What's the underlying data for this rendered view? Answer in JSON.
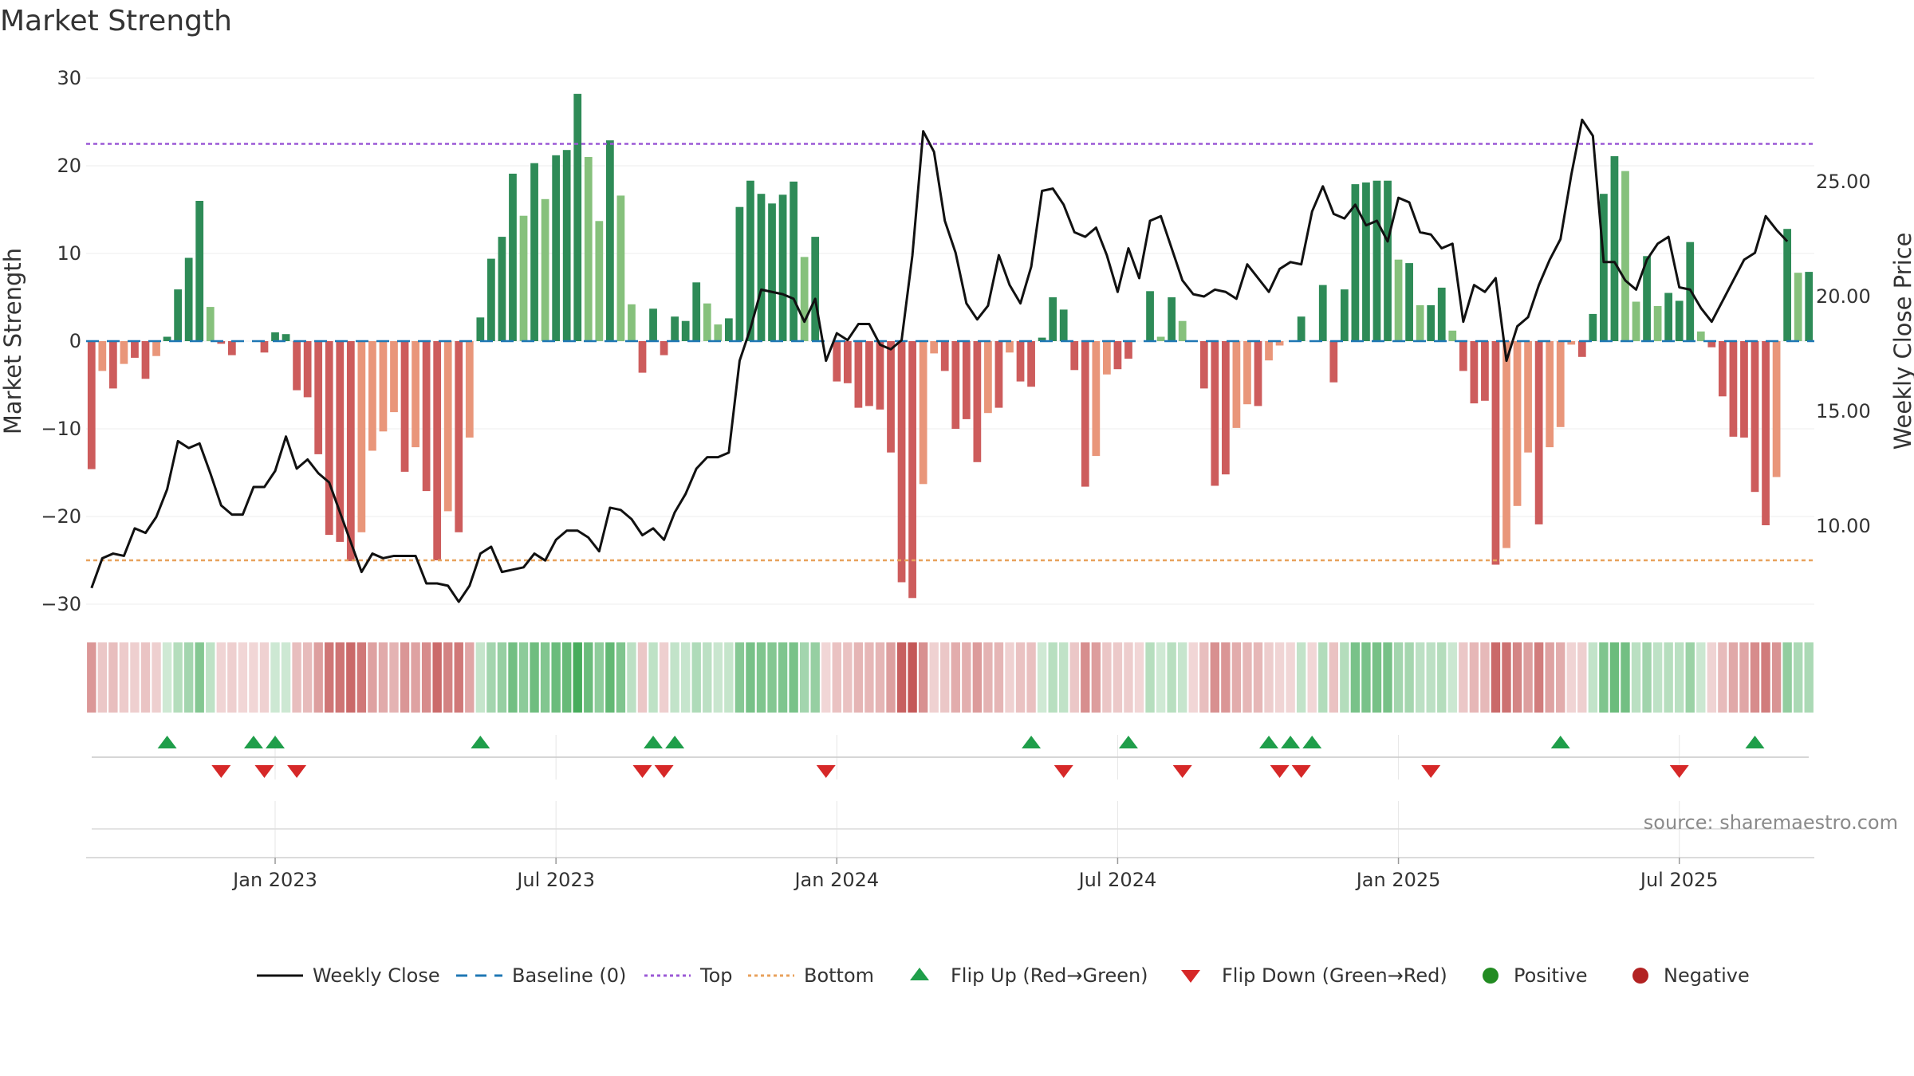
{
  "chart_data": {
    "type": "bar",
    "title": "Market Strength",
    "source": "source: sharemaestro.com",
    "left_axis": {
      "label": "Market Strength",
      "range": [
        -33,
        32
      ],
      "ticks": [
        30,
        20,
        10,
        0,
        -10,
        -20,
        -30
      ],
      "tick_labels": [
        "30",
        "20",
        "10",
        "0",
        "−10",
        "−20",
        "−30"
      ]
    },
    "right_axis": {
      "label": "Weekly Close Price",
      "range": [
        6.0,
        30.1
      ],
      "ticks": [
        25,
        20,
        15,
        10
      ],
      "tick_labels": [
        "25.00",
        "20.00",
        "15.00",
        "10.00"
      ]
    },
    "x_axis": {
      "tick_labels": [
        "Jan 2023",
        "Jul 2023",
        "Jan 2024",
        "Jul 2024",
        "Jan 2025",
        "Jul 2025"
      ],
      "tick_weeks": [
        17,
        43,
        69,
        95,
        121,
        147
      ]
    },
    "reference_lines": {
      "top": 22.5,
      "bottom": -25,
      "baseline": 0
    },
    "colors": {
      "strong_positive": "#2e8b57",
      "weak_positive": "#86c17c",
      "strong_negative": "#cd5c5c",
      "weak_negative": "#e9967a",
      "price_line": "#111111",
      "top_line": "#9b59d6",
      "bottom_line": "#e8a25c",
      "baseline": "#1f77b4",
      "flip_up": "#1f9e4a",
      "flip_down": "#d62828",
      "positive_dot": "#228b22",
      "negative_dot": "#b22222"
    },
    "series": [
      {
        "name": "Market Strength",
        "values": [
          -14.6,
          -3.4,
          -5.4,
          -2.6,
          -1.9,
          -4.3,
          -1.7,
          0.5,
          5.9,
          9.5,
          16.0,
          3.9,
          -0.3,
          -1.6,
          0,
          0,
          -1.3,
          1.0,
          0.8,
          -5.6,
          -6.4,
          -12.9,
          -22.1,
          -22.9,
          -25.1,
          -21.8,
          -12.5,
          -10.3,
          -8.1,
          -14.9,
          -12.1,
          -17.1,
          -25.0,
          -19.4,
          -21.8,
          -11.0,
          2.7,
          9.4,
          11.9,
          19.1,
          14.3,
          20.3,
          16.2,
          21.2,
          21.8,
          28.2,
          21.0,
          13.7,
          22.9,
          16.6,
          4.2,
          -3.6,
          3.7,
          -1.6,
          2.8,
          2.3,
          6.7,
          4.3,
          1.9,
          2.6,
          15.3,
          18.3,
          16.8,
          15.7,
          16.7,
          18.2,
          9.6,
          11.9,
          0,
          -4.6,
          -4.8,
          -7.6,
          -7.4,
          -7.8,
          -12.7,
          -27.5,
          -29.3,
          -16.3,
          -1.4,
          -3.4,
          -10.0,
          -8.9,
          -13.8,
          -8.2,
          -7.6,
          -1.3,
          -4.6,
          -5.2,
          0.4,
          5.0,
          3.6,
          -3.3,
          -16.6,
          -13.1,
          -3.8,
          -3.2,
          -2.0,
          0,
          5.7,
          0.5,
          5.0,
          2.3,
          0,
          -5.4,
          -16.5,
          -15.2,
          -9.9,
          -7.2,
          -7.4,
          -2.2,
          -0.5,
          0,
          2.8,
          0,
          6.4,
          -4.7,
          5.9,
          17.9,
          18.1,
          18.3,
          18.3,
          9.3,
          8.9,
          4.1,
          4.1,
          6.1,
          1.2,
          -3.4,
          -7.1,
          -6.8,
          -25.5,
          -23.6,
          -18.8,
          -12.7,
          -20.9,
          -12.1,
          -9.8,
          -0.4,
          -1.8,
          3.1,
          16.8,
          21.1,
          19.4,
          4.5,
          9.7,
          4.0,
          5.5,
          4.6,
          11.3,
          1.1,
          -0.7,
          -6.3,
          -10.9,
          -11.0,
          -17.2,
          -21.0,
          -15.5,
          12.8,
          7.8,
          7.9
        ]
      },
      {
        "name": "Weekly Close",
        "values": [
          7.3,
          8.6,
          8.8,
          8.7,
          9.9,
          9.7,
          10.4,
          11.6,
          13.7,
          13.4,
          13.6,
          12.3,
          10.9,
          10.5,
          10.5,
          11.7,
          11.7,
          12.4,
          13.9,
          12.5,
          12.9,
          12.3,
          11.9,
          10.6,
          9.3,
          8.0,
          8.8,
          8.6,
          8.7,
          8.7,
          8.7,
          7.5,
          7.5,
          7.4,
          6.7,
          7.4,
          8.8,
          9.1,
          8.0,
          8.1,
          8.2,
          8.8,
          8.5,
          9.4,
          9.8,
          9.8,
          9.5,
          8.9,
          10.8,
          10.7,
          10.3,
          9.6,
          9.9,
          9.4,
          10.6,
          11.4,
          12.5,
          13.0,
          13.0,
          13.2,
          17.2,
          18.6,
          20.3,
          20.2,
          20.1,
          19.9,
          18.9,
          19.9,
          17.2,
          18.4,
          18.1,
          18.8,
          18.8,
          17.9,
          17.7,
          18.1,
          21.8,
          27.2,
          26.3,
          23.3,
          21.9,
          19.7,
          19.0,
          19.6,
          21.8,
          20.5,
          19.7,
          21.3,
          24.6,
          24.7,
          24.0,
          22.8,
          22.6,
          23.0,
          21.8,
          20.2,
          22.1,
          20.8,
          23.3,
          23.5,
          22.1,
          20.7,
          20.1,
          20.0,
          20.3,
          20.2,
          19.9,
          21.4,
          20.8,
          20.2,
          21.2,
          21.5,
          21.4,
          23.7,
          24.8,
          23.6,
          23.4,
          24.0,
          23.1,
          23.3,
          22.4,
          24.3,
          24.1,
          22.8,
          22.7,
          22.1,
          22.3,
          18.9,
          20.5,
          20.2,
          20.8,
          17.2,
          18.7,
          19.1,
          20.5,
          21.6,
          22.5,
          25.3,
          27.7,
          27.0,
          21.5,
          21.5,
          20.7,
          20.3,
          21.6,
          22.3,
          22.6,
          20.4,
          20.3,
          19.5,
          18.9,
          19.8,
          20.7,
          21.6,
          21.9,
          23.5,
          22.9,
          22.4
        ]
      }
    ],
    "flip_up_weeks": [
      7,
      15,
      17,
      36,
      52,
      54,
      87,
      96,
      109,
      111,
      113,
      136,
      154
    ],
    "flip_down_weeks": [
      12,
      16,
      19,
      51,
      53,
      68,
      90,
      101,
      110,
      112,
      124,
      147
    ],
    "legend": [
      {
        "name": "Weekly Close",
        "symbol": "solid-line"
      },
      {
        "name": "Baseline (0)",
        "symbol": "dashed-line"
      },
      {
        "name": "Top",
        "symbol": "dotted-purple-line"
      },
      {
        "name": "Bottom",
        "symbol": "dotted-orange-line"
      },
      {
        "name": "Flip Up (Red→Green)",
        "symbol": "triangle-up"
      },
      {
        "name": "Flip Down (Green→Red)",
        "symbol": "triangle-down"
      },
      {
        "name": "Positive",
        "symbol": "green-dot"
      },
      {
        "name": "Negative",
        "symbol": "red-dot"
      }
    ]
  }
}
